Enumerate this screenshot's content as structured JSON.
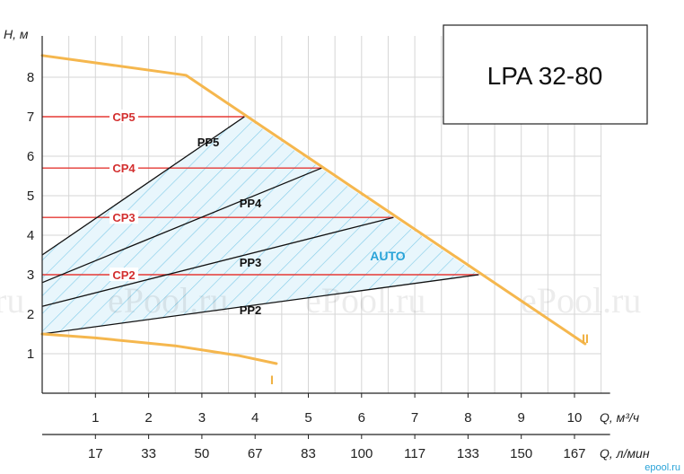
{
  "chart_data": {
    "type": "line",
    "model": "LPA 32-80",
    "ylabel": "H, м",
    "xlabel": "Q, м³/ч",
    "x2label": "Q, л/мин",
    "ylim": [
      0,
      9
    ],
    "xlim": [
      0,
      10.5
    ],
    "grid": true,
    "y_ticks": [
      1,
      2,
      3,
      4,
      5,
      6,
      7,
      8
    ],
    "x_ticks": [
      1,
      2,
      3,
      4,
      5,
      6,
      7,
      8,
      9,
      10
    ],
    "x2_ticks": [
      "17",
      "33",
      "50",
      "67",
      "83",
      "100",
      "117",
      "133",
      "150",
      "167"
    ],
    "curves": [
      {
        "name": "II",
        "x": [
          0,
          2.7,
          10.2
        ],
        "y": [
          8.55,
          8.05,
          1.25
        ]
      },
      {
        "name": "I",
        "x": [
          0,
          1.0,
          2.5,
          3.7,
          4.4
        ],
        "y": [
          1.5,
          1.4,
          1.2,
          0.95,
          0.75
        ]
      }
    ],
    "constant_pressure": [
      {
        "name": "CP5",
        "y": 7.0,
        "x_end": 3.8
      },
      {
        "name": "CP4",
        "y": 5.7,
        "x_end": 5.25
      },
      {
        "name": "CP3",
        "y": 4.45,
        "x_end": 6.6
      },
      {
        "name": "CP2",
        "y": 3.0,
        "x_end": 8.2
      }
    ],
    "proportional_pressure": [
      {
        "name": "PP5",
        "x": [
          0,
          3.8
        ],
        "y": [
          3.5,
          7.0
        ]
      },
      {
        "name": "PP4",
        "x": [
          0,
          5.25
        ],
        "y": [
          2.8,
          5.7
        ]
      },
      {
        "name": "PP3",
        "x": [
          0,
          6.6
        ],
        "y": [
          2.2,
          4.45
        ]
      },
      {
        "name": "PP2",
        "x": [
          0,
          8.2
        ],
        "y": [
          1.5,
          3.0
        ]
      }
    ],
    "auto_region_label": "AUTO",
    "colors": {
      "max_curve": "#f5b74e",
      "cp": "#e53935",
      "pp": "#111111",
      "hatch": "#7fcbe8",
      "auto": "#29a3d8"
    }
  },
  "watermarks": [
    "ru",
    "ePool.ru",
    "ePool.ru",
    "ePool.ru"
  ],
  "corner_mark": "epool.ru"
}
